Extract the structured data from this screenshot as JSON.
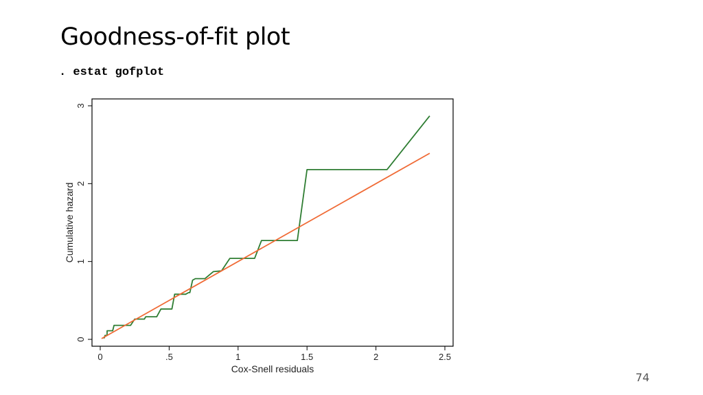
{
  "slide": {
    "title": "Goodness-of-fit plot",
    "command": ". estat gofplot",
    "page_number": "74"
  },
  "colors": {
    "series_step": "#2e7d32",
    "series_reference": "#f06a35",
    "axis": "#000000"
  },
  "chart_data": {
    "type": "line",
    "xlabel": "Cox-Snell residuals",
    "ylabel": "Cumulative hazard",
    "xlim": [
      0,
      2.5
    ],
    "ylim": [
      0,
      3
    ],
    "xticks": [
      {
        "v": 0,
        "label": "0"
      },
      {
        "v": 0.5,
        "label": ".5"
      },
      {
        "v": 1,
        "label": "1"
      },
      {
        "v": 1.5,
        "label": "1.5"
      },
      {
        "v": 2,
        "label": "2"
      },
      {
        "v": 2.5,
        "label": "2.5"
      }
    ],
    "yticks": [
      {
        "v": 0,
        "label": "0"
      },
      {
        "v": 1,
        "label": "1"
      },
      {
        "v": 2,
        "label": "2"
      },
      {
        "v": 3,
        "label": "3"
      }
    ],
    "grid": false,
    "legend": "none",
    "series": [
      {
        "style": "step",
        "color": "#2e7d32",
        "points": [
          [
            0.02,
            0.02
          ],
          [
            0.03,
            0.02
          ],
          [
            0.035,
            0.05
          ],
          [
            0.05,
            0.05
          ],
          [
            0.05,
            0.11
          ],
          [
            0.09,
            0.11
          ],
          [
            0.1,
            0.18
          ],
          [
            0.22,
            0.18
          ],
          [
            0.25,
            0.26
          ],
          [
            0.32,
            0.26
          ],
          [
            0.33,
            0.29
          ],
          [
            0.41,
            0.29
          ],
          [
            0.44,
            0.39
          ],
          [
            0.52,
            0.39
          ],
          [
            0.54,
            0.58
          ],
          [
            0.62,
            0.58
          ],
          [
            0.64,
            0.6
          ],
          [
            0.65,
            0.6
          ],
          [
            0.67,
            0.76
          ],
          [
            0.69,
            0.78
          ],
          [
            0.76,
            0.78
          ],
          [
            0.82,
            0.87
          ],
          [
            0.88,
            0.88
          ],
          [
            0.94,
            1.04
          ],
          [
            1.12,
            1.04
          ],
          [
            1.17,
            1.27
          ],
          [
            1.43,
            1.27
          ],
          [
            1.5,
            2.18
          ],
          [
            2.08,
            2.18
          ],
          [
            2.39,
            2.87
          ]
        ]
      },
      {
        "style": "line",
        "color": "#f06a35",
        "points": [
          [
            0.01,
            0.01
          ],
          [
            2.39,
            2.39
          ]
        ]
      }
    ]
  }
}
